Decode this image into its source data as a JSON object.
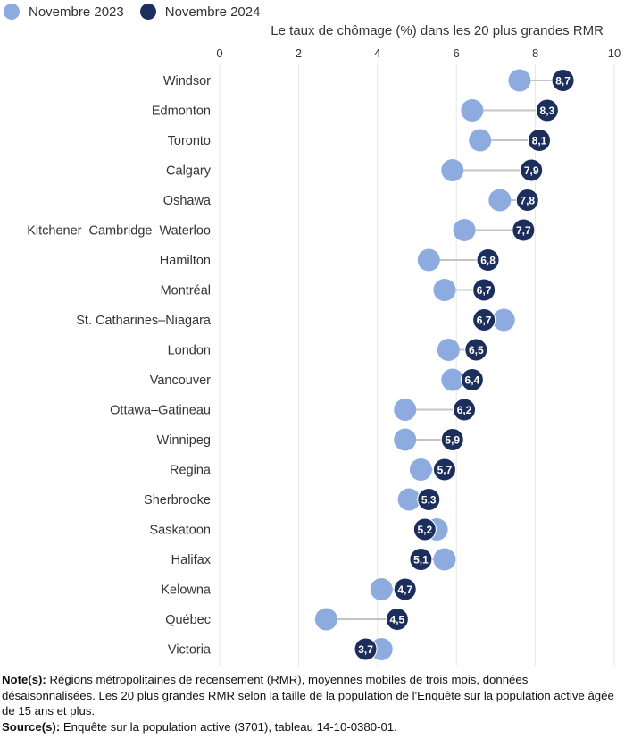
{
  "colors": {
    "series_2023": "#8eabe0",
    "series_2024": "#1c2f5c",
    "connector": "#c4c4c4",
    "grid": "#e6e6e6"
  },
  "chart_data": {
    "type": "dot",
    "title": "Le taux de chômage (%) dans les 20 plus grandes RMR",
    "xlim": [
      0,
      10
    ],
    "xticks": [
      0,
      2,
      4,
      6,
      8,
      10
    ],
    "grid": true,
    "legend_position": "top-left",
    "categories": [
      "Windsor",
      "Edmonton",
      "Toronto",
      "Calgary",
      "Oshawa",
      "Kitchener–Cambridge–Waterloo",
      "Hamilton",
      "Montréal",
      "St. Catharines–Niagara",
      "London",
      "Vancouver",
      "Ottawa–Gatineau",
      "Winnipeg",
      "Regina",
      "Sherbrooke",
      "Saskatoon",
      "Halifax",
      "Kelowna",
      "Québec",
      "Victoria"
    ],
    "series": [
      {
        "name": "Novembre 2023",
        "values": [
          7.6,
          6.4,
          6.6,
          5.9,
          7.1,
          6.2,
          5.3,
          5.7,
          7.2,
          5.8,
          5.9,
          4.7,
          4.7,
          5.1,
          4.8,
          5.5,
          5.7,
          4.1,
          2.7,
          4.1
        ]
      },
      {
        "name": "Novembre 2024",
        "values": [
          8.7,
          8.3,
          8.1,
          7.9,
          7.8,
          7.7,
          6.8,
          6.7,
          6.7,
          6.5,
          6.4,
          6.2,
          5.9,
          5.7,
          5.3,
          5.2,
          5.1,
          4.7,
          4.5,
          3.7
        ]
      }
    ],
    "value_labels": [
      "8,7",
      "8,3",
      "8,1",
      "7,9",
      "7,8",
      "7,7",
      "6,8",
      "6,7",
      "6,7",
      "6,5",
      "6,4",
      "6,2",
      "5,9",
      "5,7",
      "5,3",
      "5,2",
      "5,1",
      "4,7",
      "4,5",
      "3,7"
    ],
    "tick_labels": [
      "0",
      "2",
      "4",
      "6",
      "8",
      "10"
    ]
  },
  "notes": {
    "note_label": "Note(s):",
    "note_text": " Régions métropolitaines de recensement (RMR), moyennes mobiles de trois mois, données désaisonnalisées. Les 20 plus grandes RMR selon la taille de la population de l'Enquête sur la population active âgée de 15 ans et plus.",
    "source_label": "Source(s):",
    "source_text": " Enquête sur la population active (3701), tableau 14-10-0380-01."
  }
}
